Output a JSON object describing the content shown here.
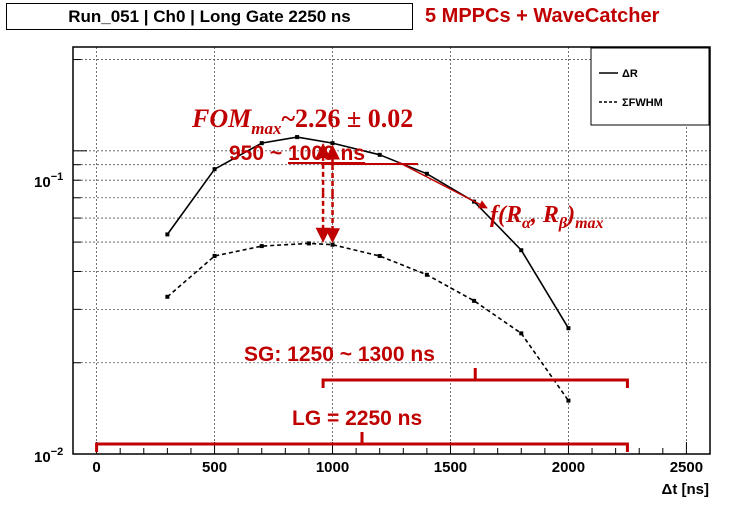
{
  "title": "Run_051 | Ch0 | Long Gate 2250 ns",
  "subtitle": "5 MPPCs + WaveCatcher",
  "colors": {
    "annotation": "#c00000",
    "frame": "#000000",
    "grid": "#555555"
  },
  "chart_data": {
    "type": "line",
    "xlabel": "Δt [ns]",
    "ylabel": "",
    "xlim": [
      -100,
      2600
    ],
    "ylim": [
      0.01,
      0.22
    ],
    "yscale": "log",
    "grid": true,
    "x_ticks": [
      "0",
      "500",
      "1000",
      "1500",
      "2000",
      "2500"
    ],
    "y_ticks": [
      "10",
      "10"
    ],
    "y_tick_exponents": [
      "−1",
      "−2"
    ],
    "legend_position": "top-right",
    "series": [
      {
        "name": "ΔR",
        "style": "solid",
        "x": [
          300,
          500,
          700,
          850,
          1000,
          1200,
          1400,
          1600,
          1800,
          2000
        ],
        "y": [
          0.053,
          0.087,
          0.106,
          0.111,
          0.106,
          0.097,
          0.084,
          0.068,
          0.047,
          0.026
        ]
      },
      {
        "name": "ΣFWHM",
        "style": "dashed",
        "x": [
          300,
          500,
          700,
          900,
          1000,
          1200,
          1400,
          1600,
          1800,
          2000
        ],
        "y": [
          0.033,
          0.045,
          0.0485,
          0.0495,
          0.049,
          0.045,
          0.039,
          0.032,
          0.025,
          0.015
        ]
      }
    ],
    "annotations": {
      "fom_text": "FOM",
      "fom_sub": "max",
      "fom_value": "~2.26 ± 0.02",
      "opt_range_prefix": "950 ~ ",
      "opt_range_underlined": "1000 ns",
      "f_label": "f(R",
      "f_sub_alpha": "α",
      "f_mid": ", R",
      "f_sub_beta": "β",
      "f_end": ")",
      "f_sub_max": "max",
      "sg_label": "SG: 1250 ~ 1300 ns",
      "sg_range": [
        960,
        2250
      ],
      "lg_label": "LG = 2250 ns",
      "lg_range": [
        0,
        2250
      ],
      "arrow_x": [
        960,
        1000
      ]
    }
  }
}
